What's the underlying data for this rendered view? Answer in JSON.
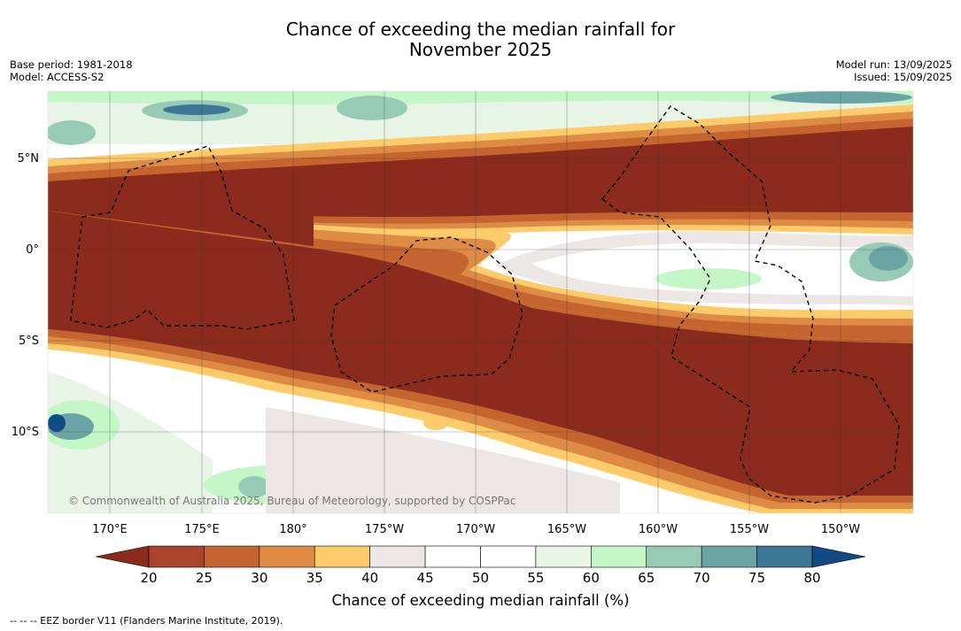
{
  "title_line1": "Chance of exceeding the median rainfall for",
  "title_line2": "November 2025",
  "base_period": "Base period: 1981-2018",
  "model": "Model: ACCESS-S2",
  "model_run": "Model run: 13/09/2025",
  "issued": "Issued: 15/09/2025",
  "attribution": "© Commonwealth of Australia 2025, Bureau of Meteorology, supported by COSPPac",
  "footnote": "--  --  -- EEZ border V11 (Flanders Marine Institute, 2019).",
  "lat_labels": [
    "5°N",
    "0°",
    "5°S",
    "10°S"
  ],
  "lon_labels": [
    "170°E",
    "175°E",
    "180°",
    "175°W",
    "170°W",
    "165°W",
    "160°W",
    "155°W",
    "150°W"
  ],
  "colorbar": {
    "label": "Chance of exceeding median rainfall (%)",
    "ticks": [
      "20",
      "25",
      "30",
      "35",
      "40",
      "45",
      "50",
      "55",
      "60",
      "65",
      "70",
      "75",
      "80"
    ],
    "under_color": "#8b2b1e",
    "over_color": "#114a84",
    "colors": [
      "#a9442b",
      "#c4642f",
      "#de8c45",
      "#fdcb6a",
      "#ece7e4",
      "#ffffff",
      "#ffffff",
      "#e8f4e6",
      "#c5f6c8",
      "#97cbb5",
      "#6ba4a5",
      "#3e7896"
    ]
  }
}
